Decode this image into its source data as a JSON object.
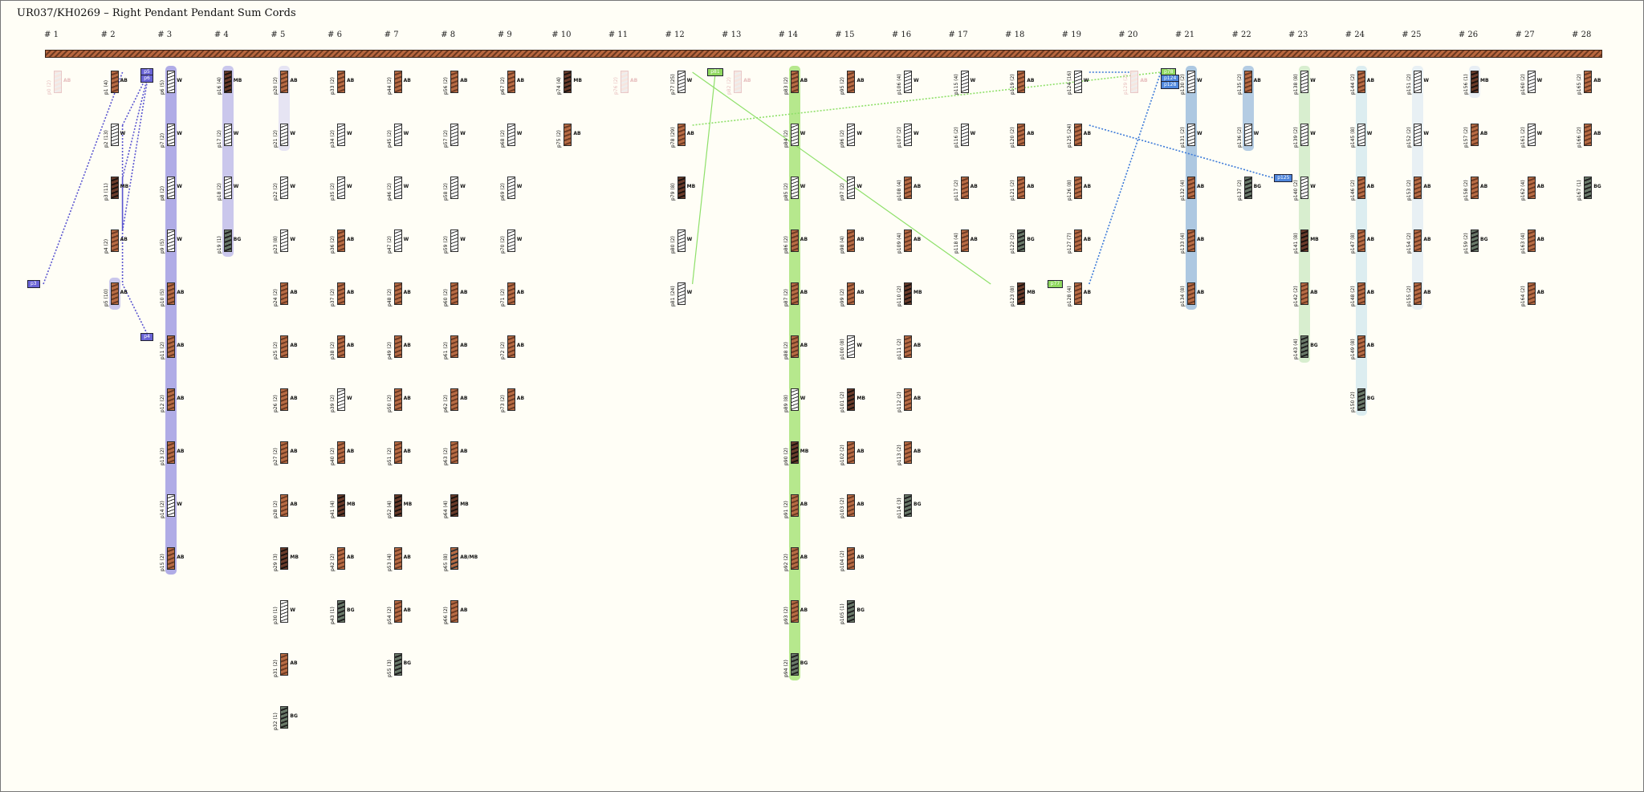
{
  "title": "UR037/KH0269 – Right Pendant Pendant Sum Cords",
  "groups": [
    "# 1",
    "# 2",
    "# 3",
    "# 4",
    "# 5",
    "# 6",
    "# 7",
    "# 8",
    "# 9",
    "# 10",
    "# 11",
    "# 12",
    "# 13",
    "# 14",
    "# 15",
    "# 16",
    "# 17",
    "# 18",
    "# 19",
    "# 20",
    "# 21",
    "# 22",
    "# 23",
    "# 24",
    "# 25",
    "# 26",
    "# 27",
    "# 28"
  ],
  "pendants": [
    {
      "group": 1,
      "row": 0,
      "label": "p0 (2)",
      "color": "AB",
      "ghost": true
    },
    {
      "group": 2,
      "row": 0,
      "label": "p1 (4)",
      "color": "AB"
    },
    {
      "group": 2,
      "row": 1,
      "label": "p2 (13)",
      "color": "W"
    },
    {
      "group": 2,
      "row": 2,
      "label": "p3 (11)",
      "color": "MB"
    },
    {
      "group": 2,
      "row": 3,
      "label": "p4 (2)",
      "color": "AB"
    },
    {
      "group": 2,
      "row": 4,
      "label": "p5 (10)",
      "color": "AB"
    },
    {
      "group": 3,
      "row": 0,
      "label": "p6 (5)",
      "color": "W"
    },
    {
      "group": 3,
      "row": 1,
      "label": "p7 (2)",
      "color": "W"
    },
    {
      "group": 3,
      "row": 2,
      "label": "p8 (2)",
      "color": "W"
    },
    {
      "group": 3,
      "row": 3,
      "label": "p9 (5)",
      "color": "W"
    },
    {
      "group": 3,
      "row": 4,
      "label": "p10 (5)",
      "color": "AB"
    },
    {
      "group": 3,
      "row": 5,
      "label": "p11 (2)",
      "color": "AB"
    },
    {
      "group": 3,
      "row": 6,
      "label": "p12 (2)",
      "color": "AB"
    },
    {
      "group": 3,
      "row": 7,
      "label": "p13 (2)",
      "color": "AB"
    },
    {
      "group": 3,
      "row": 8,
      "label": "p14 (2)",
      "color": "W"
    },
    {
      "group": 3,
      "row": 9,
      "label": "p15 (2)",
      "color": "AB"
    },
    {
      "group": 4,
      "row": 0,
      "label": "p16 (4)",
      "color": "MB"
    },
    {
      "group": 4,
      "row": 1,
      "label": "p17 (2)",
      "color": "W"
    },
    {
      "group": 4,
      "row": 2,
      "label": "p18 (2)",
      "color": "W"
    },
    {
      "group": 4,
      "row": 3,
      "label": "p19 (1)",
      "color": "BG"
    },
    {
      "group": 5,
      "row": 0,
      "label": "p20 (2)",
      "color": "AB"
    },
    {
      "group": 5,
      "row": 1,
      "label": "p21 (2)",
      "color": "W"
    },
    {
      "group": 5,
      "row": 2,
      "label": "p22 (2)",
      "color": "W"
    },
    {
      "group": 5,
      "row": 3,
      "label": "p23 (8)",
      "color": "W"
    },
    {
      "group": 5,
      "row": 4,
      "label": "p24 (2)",
      "color": "AB"
    },
    {
      "group": 5,
      "row": 5,
      "label": "p25 (2)",
      "color": "AB"
    },
    {
      "group": 5,
      "row": 6,
      "label": "p26 (2)",
      "color": "AB"
    },
    {
      "group": 5,
      "row": 7,
      "label": "p27 (2)",
      "color": "AB"
    },
    {
      "group": 5,
      "row": 8,
      "label": "p28 (2)",
      "color": "AB"
    },
    {
      "group": 5,
      "row": 9,
      "label": "p29 (3)",
      "color": "MB"
    },
    {
      "group": 5,
      "row": 10,
      "label": "p30 (1)",
      "color": "W"
    },
    {
      "group": 5,
      "row": 11,
      "label": "p31 (2)",
      "color": "AB"
    },
    {
      "group": 5,
      "row": 12,
      "label": "p32 (1)",
      "color": "BG"
    },
    {
      "group": 6,
      "row": 0,
      "label": "p33 (2)",
      "color": "AB"
    },
    {
      "group": 6,
      "row": 1,
      "label": "p34 (2)",
      "color": "W"
    },
    {
      "group": 6,
      "row": 2,
      "label": "p35 (2)",
      "color": "W"
    },
    {
      "group": 6,
      "row": 3,
      "label": "p36 (2)",
      "color": "AB"
    },
    {
      "group": 6,
      "row": 4,
      "label": "p37 (2)",
      "color": "AB"
    },
    {
      "group": 6,
      "row": 5,
      "label": "p38 (2)",
      "color": "AB"
    },
    {
      "group": 6,
      "row": 6,
      "label": "p39 (2)",
      "color": "W"
    },
    {
      "group": 6,
      "row": 7,
      "label": "p40 (2)",
      "color": "AB"
    },
    {
      "group": 6,
      "row": 8,
      "label": "p41 (4)",
      "color": "MB"
    },
    {
      "group": 6,
      "row": 9,
      "label": "p42 (2)",
      "color": "AB"
    },
    {
      "group": 6,
      "row": 10,
      "label": "p43 (1)",
      "color": "BG"
    },
    {
      "group": 7,
      "row": 0,
      "label": "p44 (2)",
      "color": "AB"
    },
    {
      "group": 7,
      "row": 1,
      "label": "p45 (2)",
      "color": "W"
    },
    {
      "group": 7,
      "row": 2,
      "label": "p46 (2)",
      "color": "W"
    },
    {
      "group": 7,
      "row": 3,
      "label": "p47 (2)",
      "color": "W"
    },
    {
      "group": 7,
      "row": 4,
      "label": "p48 (2)",
      "color": "AB"
    },
    {
      "group": 7,
      "row": 5,
      "label": "p49 (2)",
      "color": "AB"
    },
    {
      "group": 7,
      "row": 6,
      "label": "p50 (2)",
      "color": "AB"
    },
    {
      "group": 7,
      "row": 7,
      "label": "p51 (2)",
      "color": "AB"
    },
    {
      "group": 7,
      "row": 8,
      "label": "p52 (4)",
      "color": "MB"
    },
    {
      "group": 7,
      "row": 9,
      "label": "p53 (4)",
      "color": "AB"
    },
    {
      "group": 7,
      "row": 10,
      "label": "p54 (2)",
      "color": "AB"
    },
    {
      "group": 7,
      "row": 11,
      "label": "p55 (3)",
      "color": "BG"
    },
    {
      "group": 8,
      "row": 0,
      "label": "p56 (2)",
      "color": "AB"
    },
    {
      "group": 8,
      "row": 1,
      "label": "p57 (2)",
      "color": "W"
    },
    {
      "group": 8,
      "row": 2,
      "label": "p58 (2)",
      "color": "W"
    },
    {
      "group": 8,
      "row": 3,
      "label": "p59 (2)",
      "color": "W"
    },
    {
      "group": 8,
      "row": 4,
      "label": "p60 (2)",
      "color": "AB"
    },
    {
      "group": 8,
      "row": 5,
      "label": "p61 (2)",
      "color": "AB"
    },
    {
      "group": 8,
      "row": 6,
      "label": "p62 (2)",
      "color": "AB"
    },
    {
      "group": 8,
      "row": 7,
      "label": "p63 (2)",
      "color": "AB"
    },
    {
      "group": 8,
      "row": 8,
      "label": "p64 (4)",
      "color": "MB"
    },
    {
      "group": 8,
      "row": 9,
      "label": "p65 (8)",
      "color": "AB/MB",
      "mixed": true
    },
    {
      "group": 8,
      "row": 10,
      "label": "p66 (2)",
      "color": "AB"
    },
    {
      "group": 9,
      "row": 0,
      "label": "p67 (2)",
      "color": "AB"
    },
    {
      "group": 9,
      "row": 1,
      "label": "p68 (2)",
      "color": "W"
    },
    {
      "group": 9,
      "row": 2,
      "label": "p69 (2)",
      "color": "W"
    },
    {
      "group": 9,
      "row": 3,
      "label": "p70 (2)",
      "color": "W"
    },
    {
      "group": 9,
      "row": 4,
      "label": "p71 (2)",
      "color": "AB"
    },
    {
      "group": 9,
      "row": 5,
      "label": "p72 (2)",
      "color": "AB"
    },
    {
      "group": 9,
      "row": 6,
      "label": "p73 (2)",
      "color": "AB"
    },
    {
      "group": 10,
      "row": 0,
      "label": "p74 (4)",
      "color": "MB"
    },
    {
      "group": 10,
      "row": 1,
      "label": "p75 (2)",
      "color": "AB"
    },
    {
      "group": 11,
      "row": 0,
      "label": "p76 (2)",
      "color": "AB",
      "ghost": true
    },
    {
      "group": 12,
      "row": 0,
      "label": "p77 (25)",
      "color": "W"
    },
    {
      "group": 12,
      "row": 1,
      "label": "p78 (29)",
      "color": "AB"
    },
    {
      "group": 12,
      "row": 2,
      "label": "p79 (8)",
      "color": "MB"
    },
    {
      "group": 12,
      "row": 3,
      "label": "p80 (2)",
      "color": "W"
    },
    {
      "group": 12,
      "row": 4,
      "label": "p81 (24)",
      "color": "W"
    },
    {
      "group": 13,
      "row": 0,
      "label": "p82 (2)",
      "color": "AB",
      "ghost": true
    },
    {
      "group": 14,
      "row": 0,
      "label": "p83 (2)",
      "color": "AB"
    },
    {
      "group": 14,
      "row": 1,
      "label": "p84 (2)",
      "color": "W"
    },
    {
      "group": 14,
      "row": 2,
      "label": "p85 (2)",
      "color": "W"
    },
    {
      "group": 14,
      "row": 3,
      "label": "p86 (2)",
      "color": "AB"
    },
    {
      "group": 14,
      "row": 4,
      "label": "p87 (2)",
      "color": "AB"
    },
    {
      "group": 14,
      "row": 5,
      "label": "p88 (2)",
      "color": "AB"
    },
    {
      "group": 14,
      "row": 6,
      "label": "p89 (8)",
      "color": "W"
    },
    {
      "group": 14,
      "row": 7,
      "label": "p90 (2)",
      "color": "MB"
    },
    {
      "group": 14,
      "row": 8,
      "label": "p91 (2)",
      "color": "AB"
    },
    {
      "group": 14,
      "row": 9,
      "label": "p92 (2)",
      "color": "AB"
    },
    {
      "group": 14,
      "row": 10,
      "label": "p93 (2)",
      "color": "AB"
    },
    {
      "group": 14,
      "row": 11,
      "label": "p94 (2)",
      "color": "BG"
    },
    {
      "group": 15,
      "row": 0,
      "label": "p95 (2)",
      "color": "AB"
    },
    {
      "group": 15,
      "row": 1,
      "label": "p96 (2)",
      "color": "W"
    },
    {
      "group": 15,
      "row": 2,
      "label": "p97 (2)",
      "color": "W"
    },
    {
      "group": 15,
      "row": 3,
      "label": "p98 (4)",
      "color": "AB"
    },
    {
      "group": 15,
      "row": 4,
      "label": "p99 (2)",
      "color": "AB"
    },
    {
      "group": 15,
      "row": 5,
      "label": "p100 (8)",
      "color": "W"
    },
    {
      "group": 15,
      "row": 6,
      "label": "p101 (2)",
      "color": "MB"
    },
    {
      "group": 15,
      "row": 7,
      "label": "p102 (2)",
      "color": "AB"
    },
    {
      "group": 15,
      "row": 8,
      "label": "p103 (2)",
      "color": "AB"
    },
    {
      "group": 15,
      "row": 9,
      "label": "p104 (2)",
      "color": "AB"
    },
    {
      "group": 15,
      "row": 10,
      "label": "p105 (1)",
      "color": "BG"
    },
    {
      "group": 16,
      "row": 0,
      "label": "p106 (4)",
      "color": "W"
    },
    {
      "group": 16,
      "row": 1,
      "label": "p107 (2)",
      "color": "W"
    },
    {
      "group": 16,
      "row": 2,
      "label": "p108 (4)",
      "color": "AB"
    },
    {
      "group": 16,
      "row": 3,
      "label": "p109 (4)",
      "color": "AB"
    },
    {
      "group": 16,
      "row": 4,
      "label": "p110 (2)",
      "color": "MB"
    },
    {
      "group": 16,
      "row": 5,
      "label": "p111 (2)",
      "color": "AB"
    },
    {
      "group": 16,
      "row": 6,
      "label": "p112 (2)",
      "color": "AB"
    },
    {
      "group": 16,
      "row": 7,
      "label": "p113 (2)",
      "color": "AB"
    },
    {
      "group": 16,
      "row": 8,
      "label": "p114 (3)",
      "color": "BG"
    },
    {
      "group": 17,
      "row": 0,
      "label": "p115 (4)",
      "color": "W"
    },
    {
      "group": 17,
      "row": 1,
      "label": "p116 (2)",
      "color": "W"
    },
    {
      "group": 17,
      "row": 2,
      "label": "p117 (2)",
      "color": "AB"
    },
    {
      "group": 17,
      "row": 3,
      "label": "p118 (4)",
      "color": "AB"
    },
    {
      "group": 18,
      "row": 0,
      "label": "p119 (2)",
      "color": "AB"
    },
    {
      "group": 18,
      "row": 1,
      "label": "p120 (2)",
      "color": "AB"
    },
    {
      "group": 18,
      "row": 2,
      "label": "p121 (2)",
      "color": "AB"
    },
    {
      "group": 18,
      "row": 3,
      "label": "p122 (2)",
      "color": "BG"
    },
    {
      "group": 18,
      "row": 4,
      "label": "p123 (8)",
      "color": "MB"
    },
    {
      "group": 19,
      "row": 0,
      "label": "p124 (16)",
      "color": "W"
    },
    {
      "group": 19,
      "row": 1,
      "label": "p125 (24)",
      "color": "AB"
    },
    {
      "group": 19,
      "row": 2,
      "label": "p126 (8)",
      "color": "AB"
    },
    {
      "group": 19,
      "row": 3,
      "label": "p127 (7)",
      "color": "AB"
    },
    {
      "group": 19,
      "row": 4,
      "label": "p128 (4)",
      "color": "AB"
    },
    {
      "group": 20,
      "row": 0,
      "label": "p129 (2)",
      "color": "AB",
      "ghost": true
    },
    {
      "group": 21,
      "row": 0,
      "label": "p130 (2)",
      "color": "W"
    },
    {
      "group": 21,
      "row": 1,
      "label": "p131 (2)",
      "color": "W"
    },
    {
      "group": 21,
      "row": 2,
      "label": "p132 (4)",
      "color": "AB"
    },
    {
      "group": 21,
      "row": 3,
      "label": "p133 (4)",
      "color": "AB"
    },
    {
      "group": 21,
      "row": 4,
      "label": "p134 (8)",
      "color": "AB"
    },
    {
      "group": 22,
      "row": 0,
      "label": "p135 (2)",
      "color": "AB"
    },
    {
      "group": 22,
      "row": 1,
      "label": "p136 (2)",
      "color": "W"
    },
    {
      "group": 22,
      "row": 2,
      "label": "p137 (2)",
      "color": "BG"
    },
    {
      "group": 23,
      "row": 0,
      "label": "p138 (8)",
      "color": "W"
    },
    {
      "group": 23,
      "row": 1,
      "label": "p139 (2)",
      "color": "W"
    },
    {
      "group": 23,
      "row": 2,
      "label": "p140 (2)",
      "color": "W"
    },
    {
      "group": 23,
      "row": 3,
      "label": "p141 (8)",
      "color": "MB"
    },
    {
      "group": 23,
      "row": 4,
      "label": "p142 (2)",
      "color": "AB"
    },
    {
      "group": 23,
      "row": 5,
      "label": "p143 (4)",
      "color": "BG"
    },
    {
      "group": 24,
      "row": 0,
      "label": "p144 (2)",
      "color": "AB"
    },
    {
      "group": 24,
      "row": 1,
      "label": "p145 (8)",
      "color": "W"
    },
    {
      "group": 24,
      "row": 2,
      "label": "p146 (2)",
      "color": "AB"
    },
    {
      "group": 24,
      "row": 3,
      "label": "p147 (8)",
      "color": "AB"
    },
    {
      "group": 24,
      "row": 4,
      "label": "p148 (2)",
      "color": "AB"
    },
    {
      "group": 24,
      "row": 5,
      "label": "p149 (8)",
      "color": "AB"
    },
    {
      "group": 24,
      "row": 6,
      "label": "p150 (2)",
      "color": "BG"
    },
    {
      "group": 25,
      "row": 0,
      "label": "p151 (2)",
      "color": "W"
    },
    {
      "group": 25,
      "row": 1,
      "label": "p152 (2)",
      "color": "W"
    },
    {
      "group": 25,
      "row": 2,
      "label": "p153 (2)",
      "color": "AB"
    },
    {
      "group": 25,
      "row": 3,
      "label": "p154 (2)",
      "color": "AB"
    },
    {
      "group": 25,
      "row": 4,
      "label": "p155 (2)",
      "color": "AB"
    },
    {
      "group": 26,
      "row": 0,
      "label": "p156 (1)",
      "color": "MB"
    },
    {
      "group": 26,
      "row": 1,
      "label": "p157 (2)",
      "color": "AB"
    },
    {
      "group": 26,
      "row": 2,
      "label": "p158 (2)",
      "color": "AB"
    },
    {
      "group": 26,
      "row": 3,
      "label": "p159 (2)",
      "color": "BG"
    },
    {
      "group": 27,
      "row": 0,
      "label": "p160 (2)",
      "color": "W"
    },
    {
      "group": 27,
      "row": 1,
      "label": "p161 (2)",
      "color": "W"
    },
    {
      "group": 27,
      "row": 2,
      "label": "p162 (4)",
      "color": "AB"
    },
    {
      "group": 27,
      "row": 3,
      "label": "p163 (4)",
      "color": "AB"
    },
    {
      "group": 27,
      "row": 4,
      "label": "p164 (2)",
      "color": "AB"
    },
    {
      "group": 28,
      "row": 0,
      "label": "p165 (2)",
      "color": "AB"
    },
    {
      "group": 28,
      "row": 1,
      "label": "p166 (2)",
      "color": "AB"
    },
    {
      "group": 28,
      "row": 2,
      "label": "p167 (1)",
      "color": "BG"
    }
  ],
  "sum_tags": [
    {
      "text": "p5",
      "group": 3,
      "row": 0,
      "color": "#6a64d6"
    },
    {
      "text": "p6",
      "group": 3,
      "row": 0,
      "color": "#6a64d6",
      "stack": 1
    },
    {
      "text": "p3",
      "group": 1,
      "row": 4,
      "color": "#6a64d6"
    },
    {
      "text": "p4",
      "group": 3,
      "row": 5,
      "color": "#6a64d6"
    },
    {
      "text": "p81",
      "group": 13,
      "row": 0,
      "color": "#8fd85f"
    },
    {
      "text": "p77",
      "group": 19,
      "row": 4,
      "color": "#8fd85f"
    },
    {
      "text": "p78",
      "group": 21,
      "row": 0,
      "color": "#8fd85f"
    },
    {
      "text": "p124",
      "group": 21,
      "row": 0,
      "color": "#4f86dc",
      "stack": 1
    },
    {
      "text": "p128",
      "group": 21,
      "row": 0,
      "color": "#4f86dc",
      "stack": 2
    },
    {
      "text": "p125",
      "group": 23,
      "row": 2,
      "color": "#4f86dc"
    }
  ],
  "colors": {
    "sum_purple": "#5a55d0",
    "sum_green": "#8fe06a",
    "sum_blue": "#3c7ad8"
  }
}
